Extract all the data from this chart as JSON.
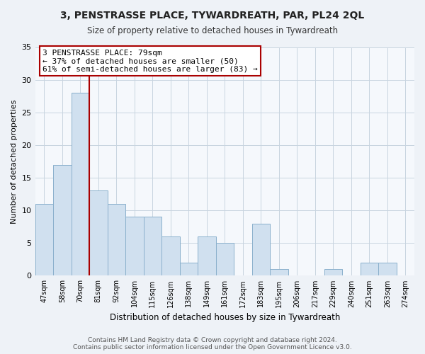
{
  "title": "3, PENSTRASSE PLACE, TYWARDREATH, PAR, PL24 2QL",
  "subtitle": "Size of property relative to detached houses in Tywardreath",
  "xlabel": "Distribution of detached houses by size in Tywardreath",
  "ylabel": "Number of detached properties",
  "categories": [
    "47sqm",
    "58sqm",
    "70sqm",
    "81sqm",
    "92sqm",
    "104sqm",
    "115sqm",
    "126sqm",
    "138sqm",
    "149sqm",
    "161sqm",
    "172sqm",
    "183sqm",
    "195sqm",
    "206sqm",
    "217sqm",
    "229sqm",
    "240sqm",
    "251sqm",
    "263sqm",
    "274sqm"
  ],
  "values": [
    11,
    17,
    28,
    13,
    11,
    9,
    9,
    6,
    2,
    6,
    5,
    0,
    8,
    1,
    0,
    0,
    1,
    0,
    2,
    2,
    0
  ],
  "bar_color": "#d0e0ef",
  "bar_edge_color": "#8ab0cc",
  "annotation_text": "3 PENSTRASSE PLACE: 79sqm\n← 37% of detached houses are smaller (50)\n61% of semi-detached houses are larger (83) →",
  "annotation_box_color": "#ffffff",
  "annotation_box_edge": "#aa0000",
  "property_line_color": "#aa0000",
  "ylim": [
    0,
    35
  ],
  "yticks": [
    0,
    5,
    10,
    15,
    20,
    25,
    30,
    35
  ],
  "footer_text": "Contains HM Land Registry data © Crown copyright and database right 2024.\nContains public sector information licensed under the Open Government Licence v3.0.",
  "bg_color": "#eef2f7",
  "plot_bg_color": "#f5f8fc",
  "grid_color": "#c8d4e0"
}
